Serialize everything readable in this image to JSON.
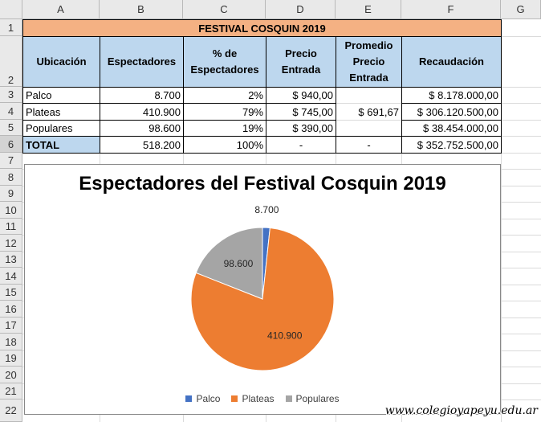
{
  "columns": [
    "A",
    "B",
    "C",
    "D",
    "E",
    "F",
    "G"
  ],
  "rows": [
    "1",
    "2",
    "3",
    "4",
    "5",
    "6",
    "7",
    "8",
    "9",
    "10",
    "11",
    "12",
    "13",
    "14",
    "15",
    "16",
    "17",
    "18",
    "19",
    "20",
    "21",
    "22"
  ],
  "sheet": {
    "title": "FESTIVAL COSQUIN 2019",
    "headers": {
      "ubicacion": "Ubicación",
      "espectadores": "Espectadores",
      "pct": "% de Espectadores",
      "precio": "Precio Entrada",
      "promedio": "Promedio Precio Entrada",
      "recaudacion": "Recaudación"
    },
    "data_rows": [
      {
        "ubicacion": "Palco",
        "espectadores": "8.700",
        "pct": "2%",
        "precio": "$ 940,00",
        "recaudacion": "$ 8.178.000,00"
      },
      {
        "ubicacion": "Plateas",
        "espectadores": "410.900",
        "pct": "79%",
        "precio": "$ 745,00",
        "recaudacion": "$ 306.120.500,00"
      },
      {
        "ubicacion": "Populares",
        "espectadores": "98.600",
        "pct": "19%",
        "precio": "$ 390,00",
        "recaudacion": "$ 38.454.000,00"
      }
    ],
    "promedio_value": "$ 691,67",
    "total": {
      "label": "TOTAL",
      "espectadores": "518.200",
      "pct": "100%",
      "precio": "-",
      "promedio": "-",
      "recaudacion": "$ 352.752.500,00"
    }
  },
  "chart_data": {
    "type": "pie",
    "title": "Espectadores del Festival Cosquin 2019",
    "categories": [
      "Palco",
      "Plateas",
      "Populares"
    ],
    "values": [
      8700,
      410900,
      98600
    ],
    "data_labels": [
      "8.700",
      "410.900",
      "98.600"
    ],
    "colors": [
      "#4472c4",
      "#ed7d31",
      "#a5a5a5"
    ],
    "legend": "bottom"
  },
  "watermark": "www.colegioyapeyu.edu.ar"
}
